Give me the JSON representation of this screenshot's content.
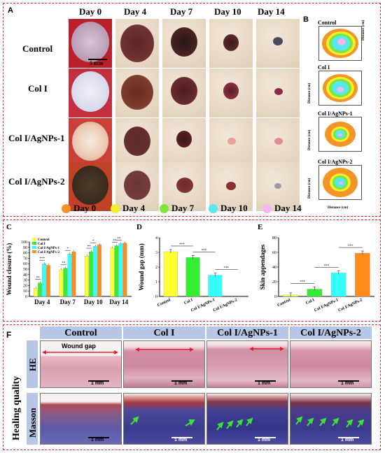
{
  "panel_a": {
    "label": "A",
    "day_headers": [
      "Day 0",
      "Day 4",
      "Day 7",
      "Day 10",
      "Day 14"
    ],
    "row_labels": [
      "Control",
      "Col I",
      "Col I/AgNPs-1",
      "Col I/AgNPs-2"
    ],
    "scale_bar": "5 mm",
    "legend": [
      {
        "label": "Day 0",
        "color": "#f39426"
      },
      {
        "label": "Day 4",
        "color": "#f2ef2c"
      },
      {
        "label": "Day 7",
        "color": "#7ee63a"
      },
      {
        "label": "Day 10",
        "color": "#56e8ee"
      },
      {
        "label": "Day 14",
        "color": "#f5b6ee"
      }
    ]
  },
  "panel_b": {
    "label": "B",
    "titles": [
      "Control",
      "Col I",
      "Col I/AgNPs-1",
      "Col I/AgNPs-2"
    ],
    "ylabel": "Distance (cm)",
    "xlabel": "Distance (cm)",
    "yticks": [
      "1.2",
      "1.0",
      "0.8",
      "0.6",
      "0.4",
      "0.2",
      "0.0"
    ],
    "xticks": [
      "0.0",
      "0.2",
      "0.4",
      "0.6",
      "0.8",
      "1.0",
      "1.2"
    ]
  },
  "chart_data": [
    {
      "panel": "C",
      "type": "bar",
      "ylabel": "Wound closure (%)",
      "categories": [
        "Day 4",
        "Day 7",
        "Day 10",
        "Day 14"
      ],
      "ylim": [
        0,
        100
      ],
      "yticks": [
        "0",
        "10",
        "20",
        "30",
        "40",
        "50",
        "60",
        "70",
        "80",
        "90",
        "100"
      ],
      "legend_position": "top-left",
      "series": [
        {
          "name": "Control",
          "color": "#ffff33",
          "values": [
            15,
            49,
            74,
            89
          ]
        },
        {
          "name": "Col I",
          "color": "#33ee33",
          "values": [
            25,
            52,
            82,
            93
          ]
        },
        {
          "name": "Col I/AgNPs-1",
          "color": "#33ffff",
          "values": [
            60,
            78,
            92,
            97
          ]
        },
        {
          "name": "Col I/AgNPs-2",
          "color": "#ff8c1a",
          "values": [
            57,
            82,
            95,
            98
          ]
        }
      ],
      "significance": [
        "**",
        "***",
        "**",
        "*",
        "**",
        "*",
        "**",
        "**"
      ]
    },
    {
      "panel": "D",
      "type": "bar",
      "ylabel": "Wound gap (mm)",
      "categories": [
        "Control",
        "Col I",
        "Col I/AgNPs-1",
        "Col I/AgNPs-2"
      ],
      "colors": [
        "#ffff33",
        "#33ee33",
        "#33ffff",
        "#ff8c1a"
      ],
      "values": [
        3.05,
        2.65,
        1.45,
        0
      ],
      "ylim": [
        0,
        4
      ],
      "yticks": [
        "0",
        "1",
        "2",
        "3",
        "4"
      ],
      "significance": [
        "***",
        "***",
        "***"
      ]
    },
    {
      "panel": "E",
      "type": "bar",
      "ylabel": "Skin appendages",
      "categories": [
        "Control",
        "Col I",
        "Col I/AgNPs-1",
        "Col I/AgNPs-2"
      ],
      "colors": [
        "#ffff33",
        "#33ee33",
        "#33ffff",
        "#ff8c1a"
      ],
      "values": [
        2,
        10,
        32,
        59
      ],
      "ylim": [
        0,
        80
      ],
      "yticks": [
        "0",
        "20",
        "40",
        "60",
        "80"
      ],
      "significance": [
        "***",
        "***",
        "***"
      ]
    }
  ],
  "panel_f": {
    "label": "F",
    "side_label": "Healing quality",
    "row_labels": [
      "HE",
      "Masson"
    ],
    "col_headers": [
      "Control",
      "Col I",
      "Col I/AgNPs-1",
      "Col I/AgNPs-2"
    ],
    "wound_gap_label": "Wound gap",
    "scale_bar": "1 mm"
  }
}
